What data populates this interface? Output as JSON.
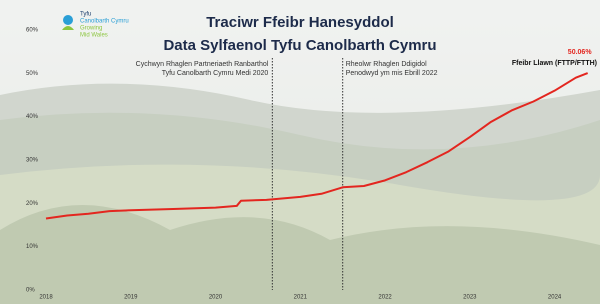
{
  "chart_data": {
    "type": "line",
    "title": [
      "Traciwr Ffeibr Hanesyddol",
      "Data Sylfaenol Tyfu Canolbarth Cymru"
    ],
    "logo": [
      "Tyfu",
      "Canolbarth Cymru",
      "Growing",
      "Mid Wales"
    ],
    "x": [
      2018.0,
      2018.25,
      2018.5,
      2018.75,
      2019.0,
      2019.5,
      2020.0,
      2020.25,
      2020.3,
      2020.6,
      2021.0,
      2021.25,
      2021.5,
      2021.75,
      2022.0,
      2022.25,
      2022.5,
      2022.75,
      2023.0,
      2023.25,
      2023.5,
      2023.75,
      2024.0,
      2024.25,
      2024.39
    ],
    "series": [
      {
        "name": "Ffeibr Llawn (FTTP/FTTH)",
        "color": "#e3261f",
        "values": [
          16.5,
          17.2,
          17.6,
          18.2,
          18.4,
          18.7,
          19.0,
          19.4,
          20.6,
          20.8,
          21.5,
          22.2,
          23.7,
          24.0,
          25.3,
          27.2,
          29.5,
          32.0,
          35.3,
          38.8,
          41.5,
          43.5,
          46.0,
          49.0,
          50.06
        ],
        "value_labels": [
          null,
          null,
          null,
          null,
          null,
          null,
          null,
          null,
          null,
          null,
          null,
          null,
          null,
          null,
          null,
          null,
          null,
          null,
          null,
          null,
          null,
          null,
          null,
          null,
          "50.06%"
        ]
      }
    ],
    "xlim": [
      2018,
      2024.5
    ],
    "xticks": [
      2018,
      2019,
      2020,
      2021,
      2022,
      2023,
      2024
    ],
    "ylim": [
      0,
      60
    ],
    "yticks": [
      {
        "value": 0,
        "label": "0%"
      },
      {
        "value": 10,
        "label": "10%"
      },
      {
        "value": 20,
        "label": "20%"
      },
      {
        "value": 30,
        "label": "30%"
      },
      {
        "value": 40,
        "label": "40%"
      },
      {
        "value": 50,
        "label": "50%"
      },
      {
        "value": 60,
        "label": "60%"
      }
    ],
    "grid": false,
    "annotations": [
      {
        "x": 2020.67,
        "text": [
          "Cychwyn Rhaglen Partneriaeth Ranbarthol",
          "Tyfu Canolbarth Cymru Medi 2020"
        ],
        "align": "end"
      },
      {
        "x": 2021.5,
        "text": [
          "Rheolwr Rhaglen Ddigidol",
          "Penodwyd ym mis Ebrill 2022"
        ],
        "align": "start"
      }
    ]
  }
}
